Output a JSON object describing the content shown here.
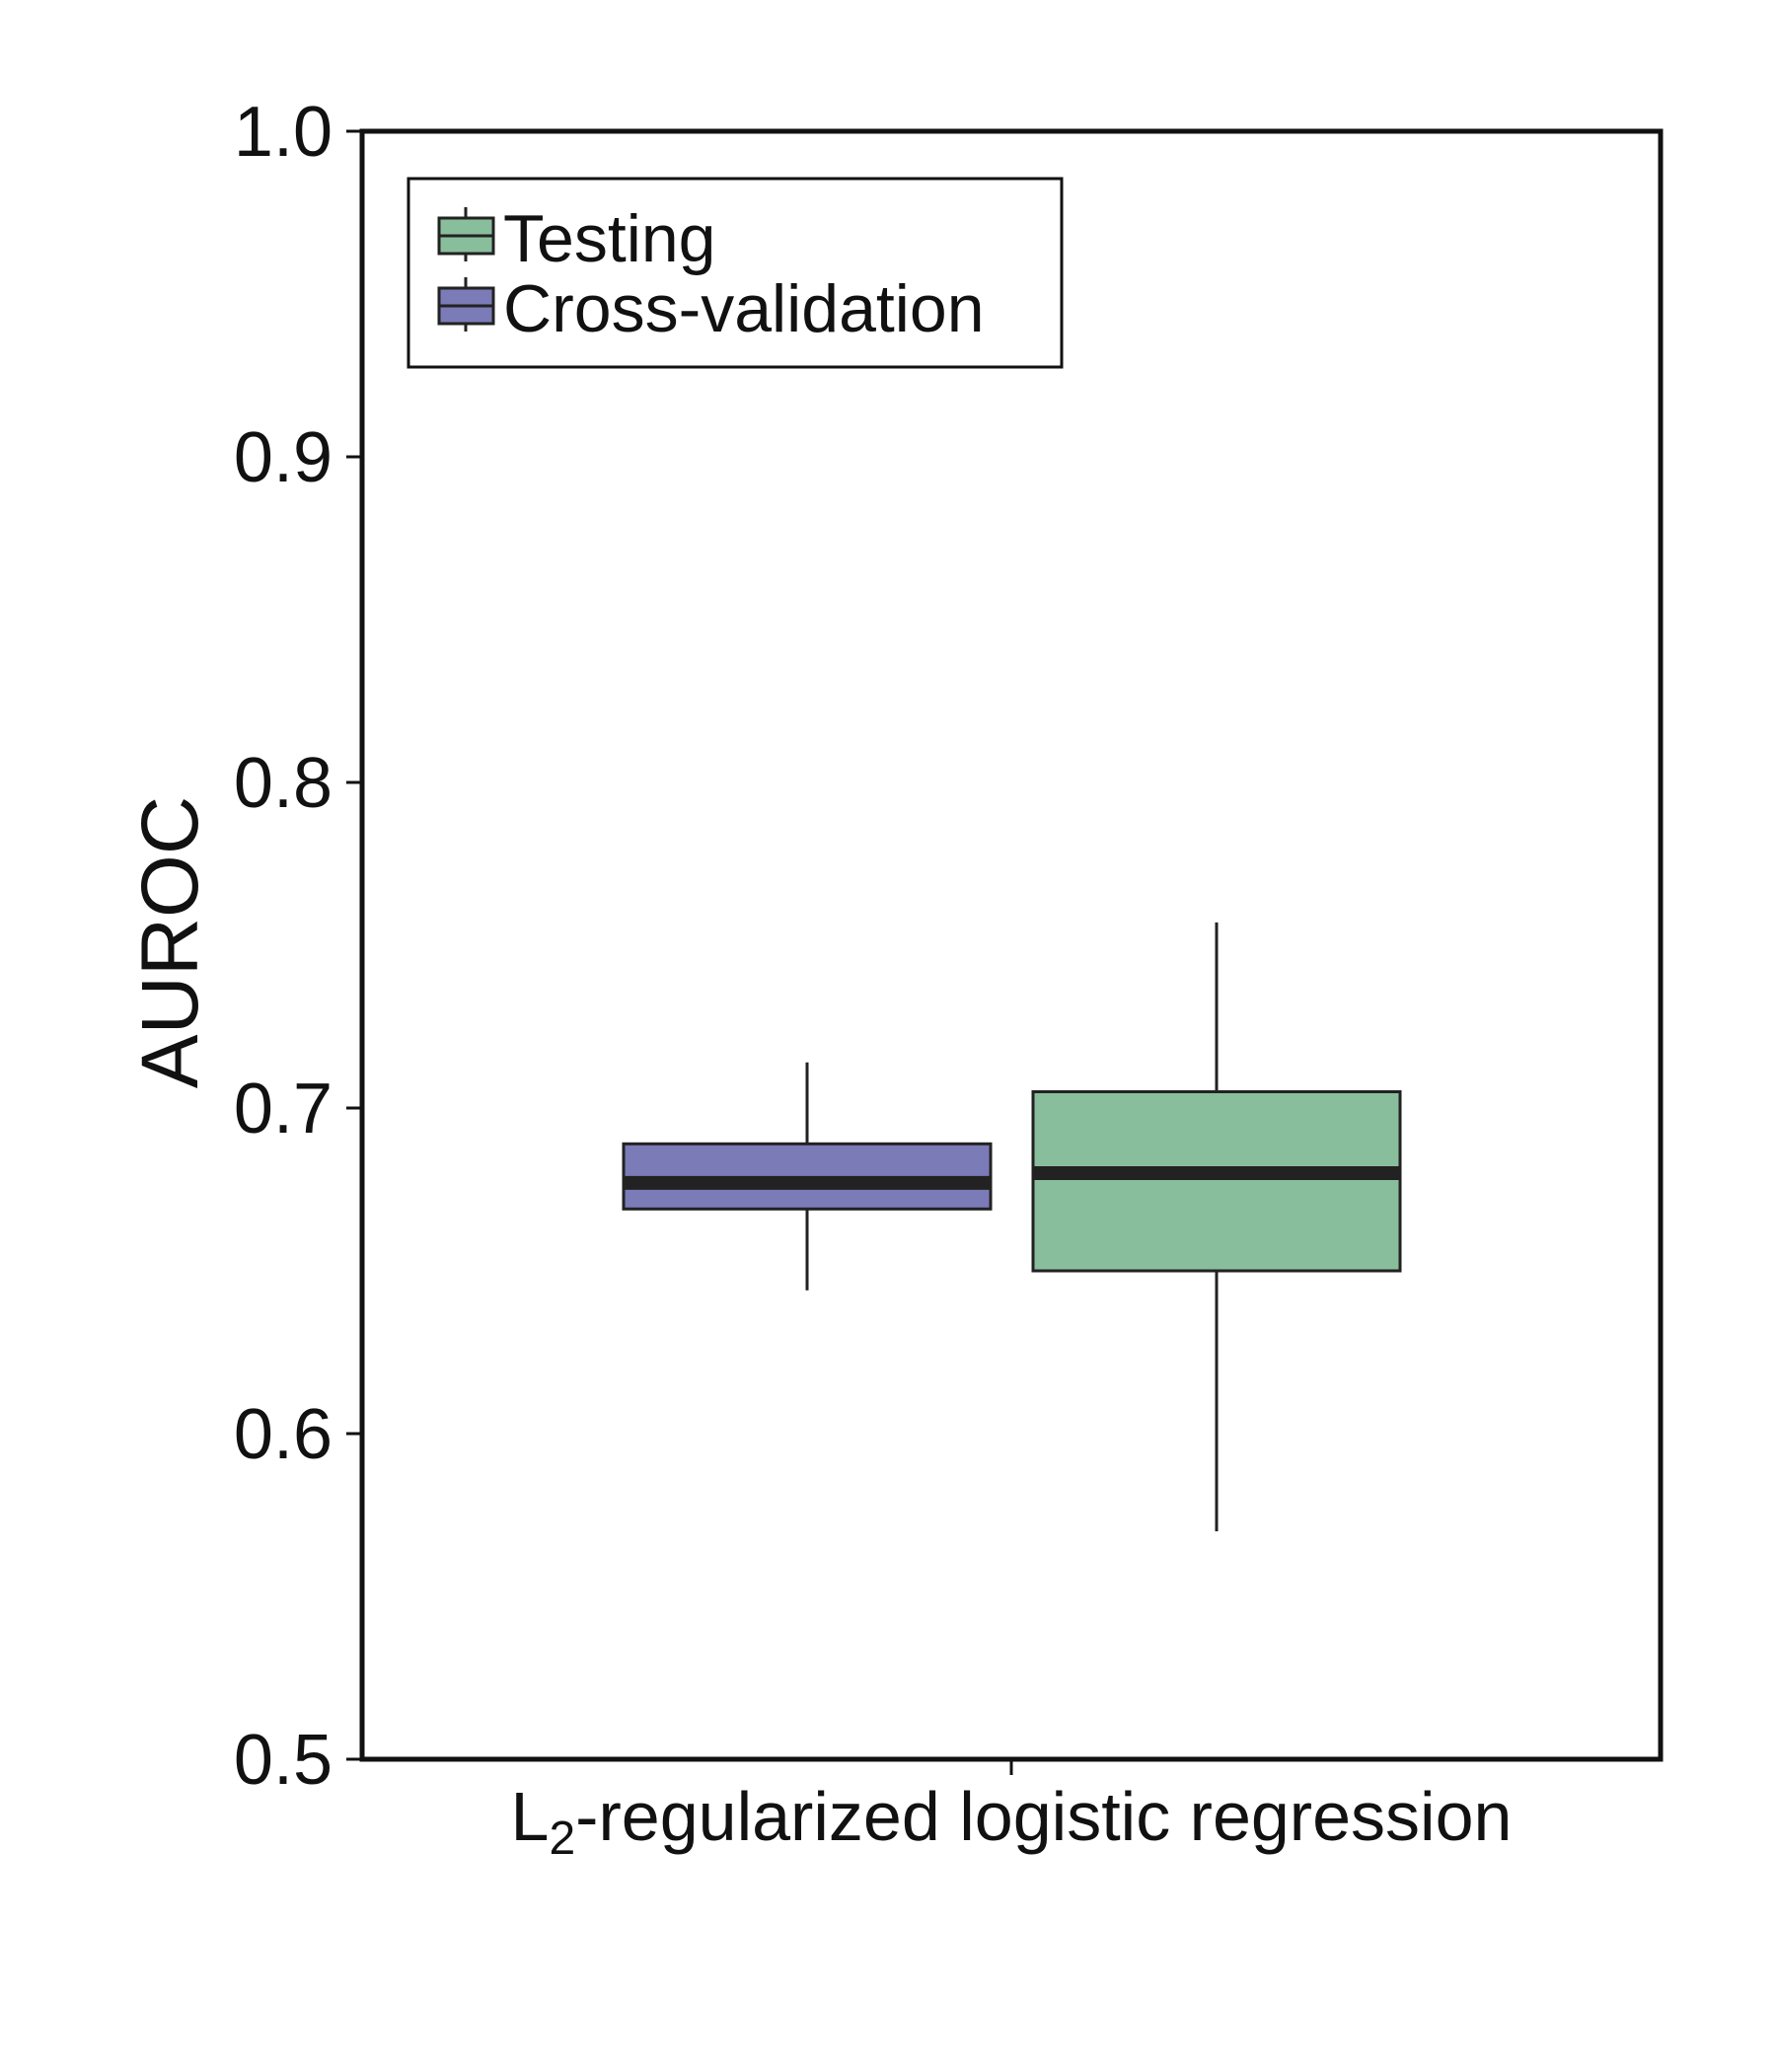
{
  "chart_data": {
    "type": "box",
    "ylabel": "AUROC",
    "xlabel": "",
    "ylim": [
      0.5,
      1.0
    ],
    "yticks": [
      "0.5",
      "0.6",
      "0.7",
      "0.8",
      "0.9",
      "1.0"
    ],
    "categories": [
      {
        "pre": "L",
        "sub": "2",
        "post": "-regularized logistic regression"
      }
    ],
    "legend": {
      "position": "top-left",
      "entries": [
        "Testing",
        "Cross-validation"
      ]
    },
    "series": [
      {
        "name": "Cross-validation",
        "color": "#7b7bb8",
        "whisker_low": 0.644,
        "q1": 0.669,
        "median": 0.677,
        "q3": 0.689,
        "whisker_high": 0.714
      },
      {
        "name": "Testing",
        "color": "#89be9c",
        "whisker_low": 0.57,
        "q1": 0.65,
        "median": 0.68,
        "q3": 0.705,
        "whisker_high": 0.757
      }
    ]
  }
}
